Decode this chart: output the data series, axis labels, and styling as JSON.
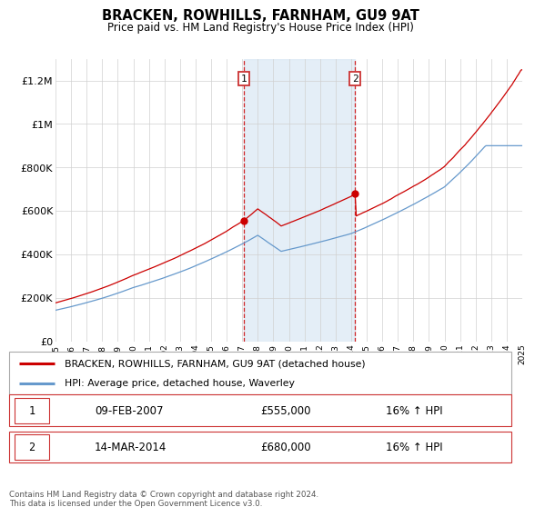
{
  "title": "BRACKEN, ROWHILLS, FARNHAM, GU9 9AT",
  "subtitle": "Price paid vs. HM Land Registry's House Price Index (HPI)",
  "legend_line1": "BRACKEN, ROWHILLS, FARNHAM, GU9 9AT (detached house)",
  "legend_line2": "HPI: Average price, detached house, Waverley",
  "annotation1_label": "1",
  "annotation1_date": "09-FEB-2007",
  "annotation1_price": "£555,000",
  "annotation1_hpi": "16% ↑ HPI",
  "annotation1_year": 2007.1,
  "annotation2_label": "2",
  "annotation2_date": "14-MAR-2014",
  "annotation2_price": "£680,000",
  "annotation2_hpi": "16% ↑ HPI",
  "annotation2_year": 2014.25,
  "footer": "Contains HM Land Registry data © Crown copyright and database right 2024.\nThis data is licensed under the Open Government Licence v3.0.",
  "red_color": "#cc0000",
  "blue_color": "#6699cc",
  "shading_color": "#dce9f5",
  "ylim": [
    0,
    1300000
  ],
  "yticks": [
    0,
    200000,
    400000,
    600000,
    800000,
    1000000,
    1200000
  ],
  "ytick_labels": [
    "£0",
    "£200K",
    "£400K",
    "£600K",
    "£800K",
    "£1M",
    "£1.2M"
  ],
  "xstart": 1995,
  "xend": 2025,
  "sale1_year": 2007.1,
  "sale1_price": 555000,
  "sale2_year": 2014.25,
  "sale2_price": 680000
}
